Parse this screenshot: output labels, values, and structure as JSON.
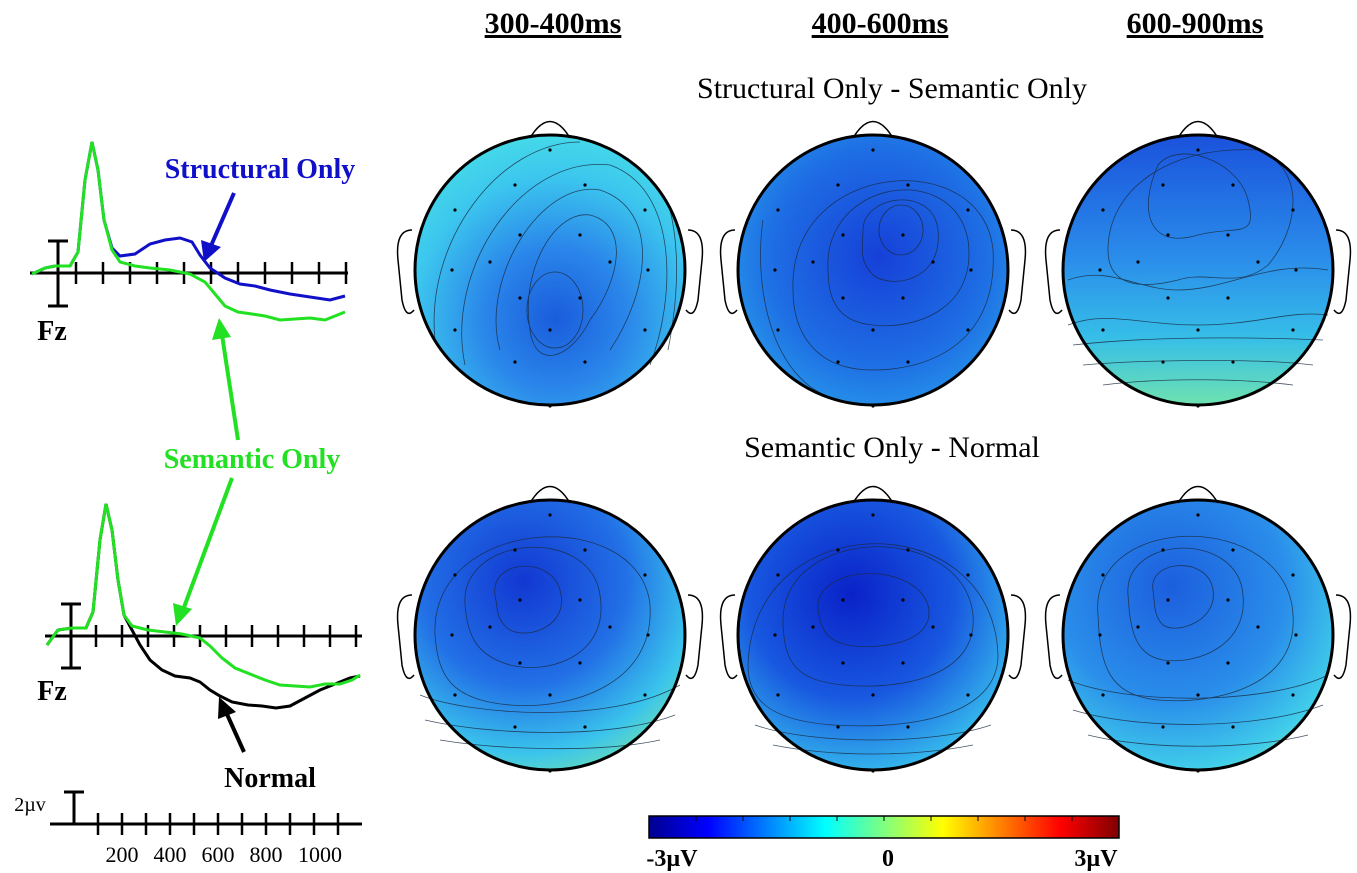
{
  "column_headers": [
    "300-400ms",
    "400-600ms",
    "600-900ms"
  ],
  "row_titles": [
    "Structural Only - Semantic Only",
    "Semantic Only - Normal"
  ],
  "erp": {
    "electrode": "Fz",
    "labels": {
      "structural": "Structural Only",
      "semantic": "Semantic Only",
      "normal": "Normal"
    },
    "scale_label": "2µv",
    "x_ticks": [
      "200",
      "400",
      "600",
      "800",
      "1000"
    ],
    "colors": {
      "structural": "#1010c8",
      "semantic": "#22e022",
      "normal": "#000000"
    }
  },
  "colorbar": {
    "min_label": "-3µV",
    "mid_label": "0",
    "max_label": "3µV",
    "range": [
      -3,
      3
    ],
    "colormap": "jet"
  }
}
